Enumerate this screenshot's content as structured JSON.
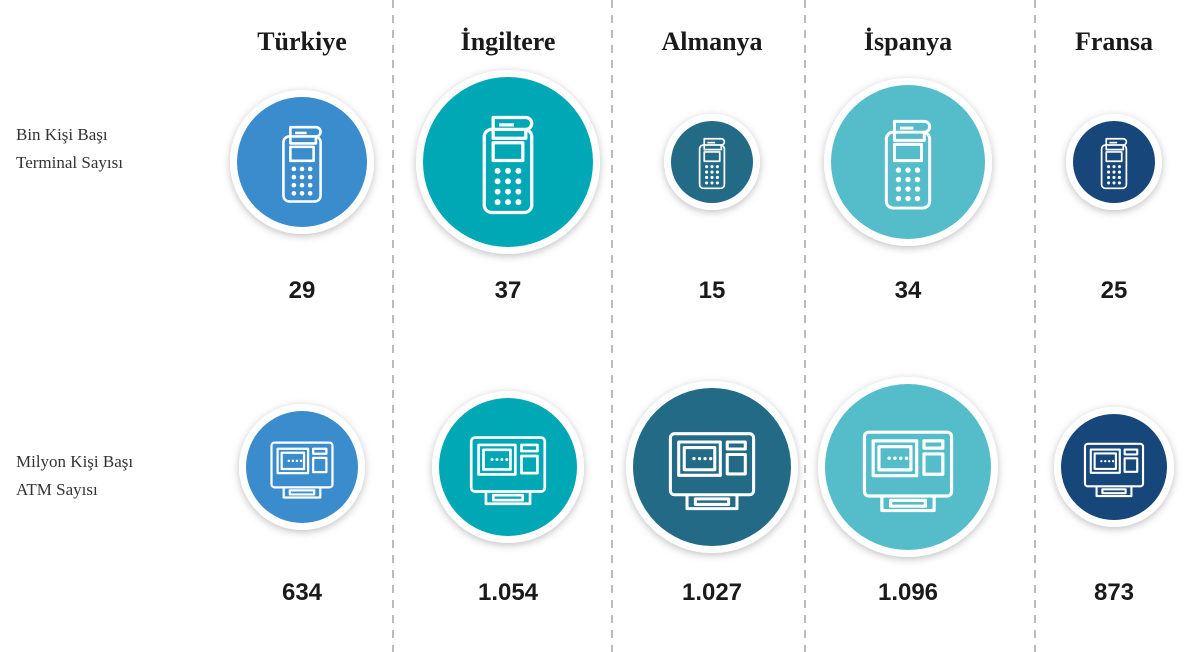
{
  "columns": [
    "Türkiye",
    "İngiltere",
    "Almanya",
    "İspanya",
    "Fransa"
  ],
  "rows": [
    {
      "label": [
        "Bin Kişi Başı",
        "Terminal Sayısı"
      ],
      "values": [
        "29",
        "37",
        "15",
        "34",
        "25"
      ]
    },
    {
      "label": [
        "Milyon Kişi Başı",
        "ATM Sayısı"
      ],
      "values": [
        "634",
        "1.054",
        "1.027",
        "1.096",
        "873"
      ]
    }
  ]
}
